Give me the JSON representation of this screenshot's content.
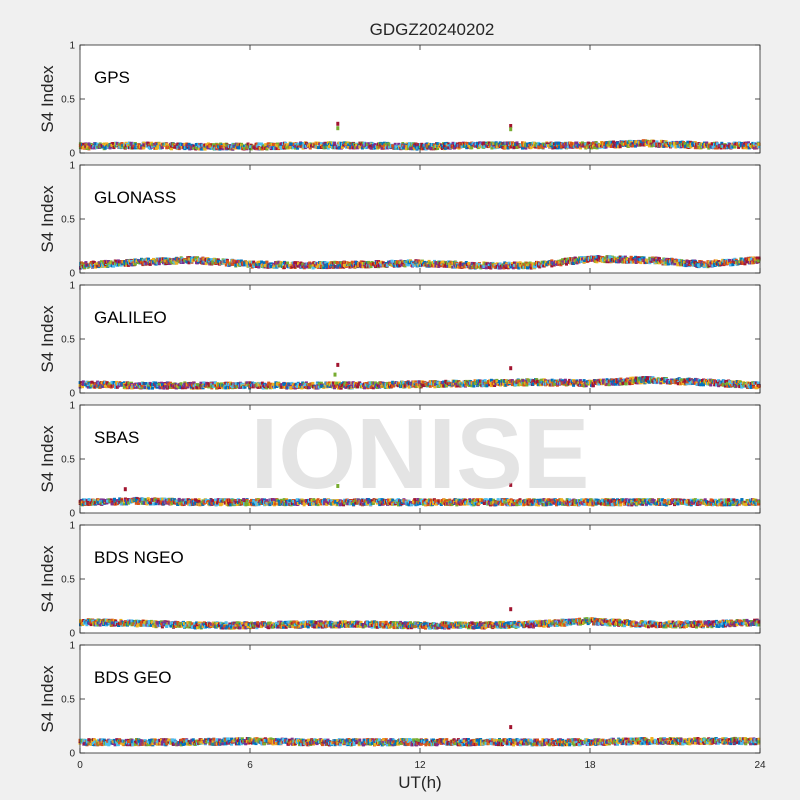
{
  "chart_data": {
    "type": "scatter",
    "title": "GDGZ20240202",
    "xlabel": "UT(h)",
    "ylabel": "S4 Index",
    "xlim": [
      0,
      24
    ],
    "ylim": [
      0,
      1
    ],
    "x_ticks": [
      "0",
      "6",
      "12",
      "18",
      "24"
    ],
    "y_ticks": [
      "0",
      "0.5",
      "1"
    ],
    "watermark": "IONISE",
    "grid": false,
    "colors": [
      "#0072BD",
      "#D95319",
      "#EDB120",
      "#7E2F8E",
      "#77AC30",
      "#4DBEEE",
      "#A2142F"
    ],
    "panels": [
      {
        "name": "GPS",
        "baseline": 0.06,
        "series": [
          {
            "x": [
              0,
              2,
              4,
              6,
              8,
              10,
              12,
              14,
              16,
              18,
              20,
              22,
              24
            ],
            "y": [
              0.06,
              0.07,
              0.06,
              0.06,
              0.07,
              0.07,
              0.06,
              0.07,
              0.07,
              0.07,
              0.09,
              0.07,
              0.07
            ]
          }
        ],
        "spikes": [
          {
            "x": 9.1,
            "y": 0.27
          },
          {
            "x": 9.1,
            "y": 0.23
          },
          {
            "x": 15.2,
            "y": 0.25
          },
          {
            "x": 15.2,
            "y": 0.22
          }
        ]
      },
      {
        "name": "GLONASS",
        "baseline": 0.07,
        "series": [
          {
            "x": [
              0,
              2,
              4,
              6,
              8,
              10,
              12,
              14,
              16,
              18,
              20,
              22,
              24
            ],
            "y": [
              0.07,
              0.1,
              0.12,
              0.08,
              0.07,
              0.08,
              0.09,
              0.07,
              0.07,
              0.13,
              0.12,
              0.08,
              0.12
            ]
          }
        ],
        "spikes": []
      },
      {
        "name": "GALILEO",
        "baseline": 0.07,
        "series": [
          {
            "x": [
              0,
              2,
              4,
              6,
              8,
              10,
              12,
              14,
              16,
              18,
              20,
              22,
              24
            ],
            "y": [
              0.08,
              0.07,
              0.07,
              0.07,
              0.07,
              0.07,
              0.08,
              0.09,
              0.1,
              0.09,
              0.12,
              0.1,
              0.07
            ]
          }
        ],
        "spikes": [
          {
            "x": 9.1,
            "y": 0.26
          },
          {
            "x": 9.0,
            "y": 0.17
          },
          {
            "x": 15.2,
            "y": 0.23
          }
        ]
      },
      {
        "name": "SBAS",
        "baseline": 0.1,
        "series": [
          {
            "x": [
              0,
              2,
              4,
              6,
              8,
              10,
              12,
              14,
              16,
              18,
              20,
              22,
              24
            ],
            "y": [
              0.1,
              0.11,
              0.1,
              0.1,
              0.1,
              0.1,
              0.1,
              0.1,
              0.1,
              0.1,
              0.1,
              0.1,
              0.1
            ]
          }
        ],
        "spikes": [
          {
            "x": 1.6,
            "y": 0.22
          },
          {
            "x": 9.1,
            "y": 0.25
          },
          {
            "x": 15.2,
            "y": 0.26
          }
        ]
      },
      {
        "name": "BDS NGEO",
        "baseline": 0.08,
        "series": [
          {
            "x": [
              0,
              2,
              4,
              6,
              8,
              10,
              12,
              14,
              16,
              18,
              20,
              22,
              24
            ],
            "y": [
              0.1,
              0.09,
              0.07,
              0.07,
              0.08,
              0.08,
              0.07,
              0.07,
              0.08,
              0.11,
              0.08,
              0.08,
              0.1
            ]
          }
        ],
        "spikes": [
          {
            "x": 15.2,
            "y": 0.22
          }
        ]
      },
      {
        "name": "BDS GEO",
        "baseline": 0.1,
        "series": [
          {
            "x": [
              0,
              2,
              4,
              6,
              8,
              10,
              12,
              14,
              16,
              18,
              20,
              22,
              24
            ],
            "y": [
              0.1,
              0.1,
              0.1,
              0.11,
              0.1,
              0.1,
              0.1,
              0.1,
              0.1,
              0.1,
              0.11,
              0.11,
              0.11
            ]
          }
        ],
        "spikes": [
          {
            "x": 15.2,
            "y": 0.24
          }
        ]
      }
    ]
  }
}
